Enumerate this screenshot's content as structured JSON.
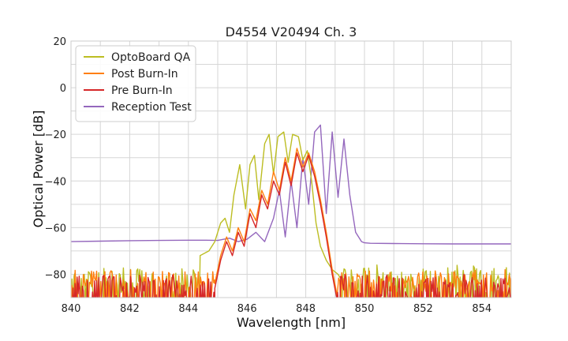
{
  "chart_data": {
    "type": "line",
    "title": "D4554 V20494 Ch. 3",
    "xlabel": "Wavelength [nm]",
    "ylabel": "Optical Power [dB]",
    "xlim": [
      840,
      855
    ],
    "ylim": [
      -90,
      20
    ],
    "xticks": [
      840,
      842,
      844,
      846,
      848,
      850,
      852,
      854
    ],
    "yticks": [
      -80,
      -60,
      -40,
      -20,
      0,
      20
    ],
    "xtick_labels": [
      "840",
      "842",
      "844",
      "846",
      "848",
      "850",
      "852",
      "854"
    ],
    "ytick_labels": [
      "−80",
      "−60",
      "−40",
      "−20",
      "0",
      "20"
    ],
    "grid": true,
    "legend_position": "top-left",
    "series": [
      {
        "name": "OptoBoard QA",
        "color": "#bcbd22",
        "noise_range": [
          840,
          844.4
        ],
        "noise_level": -77,
        "noise_floor": -88,
        "x": [
          844.4,
          844.7,
          844.9,
          845.1,
          845.25,
          845.4,
          845.55,
          845.75,
          845.95,
          846.1,
          846.25,
          846.4,
          846.6,
          846.75,
          846.9,
          847.05,
          847.25,
          847.4,
          847.55,
          847.75,
          847.9,
          848.05,
          848.2,
          848.35,
          848.5,
          848.7,
          848.9,
          849.1,
          849.2
        ],
        "y": [
          -72,
          -70,
          -66,
          -58,
          -56,
          -62,
          -46,
          -33,
          -52,
          -33,
          -29,
          -48,
          -24,
          -20,
          -37,
          -21,
          -19,
          -32,
          -20,
          -21,
          -31,
          -27,
          -40,
          -58,
          -68,
          -74,
          -78,
          -80,
          -82
        ],
        "noise_after_range": [
          849.2,
          855
        ],
        "noise_after_level": -76
      },
      {
        "name": "Post Burn-In",
        "color": "#ff7f0e",
        "noise_range": [
          840,
          844.9
        ],
        "noise_level": -78,
        "noise_floor": -88,
        "x": [
          844.9,
          845.1,
          845.3,
          845.5,
          845.7,
          845.9,
          846.1,
          846.3,
          846.5,
          846.7,
          846.9,
          847.1,
          847.3,
          847.5,
          847.7,
          847.9,
          848.1,
          848.3,
          848.5,
          848.7,
          848.9,
          849.05
        ],
        "y": [
          -84,
          -72,
          -64,
          -70,
          -60,
          -66,
          -52,
          -57,
          -44,
          -50,
          -36,
          -44,
          -30,
          -40,
          -26,
          -34,
          -28,
          -36,
          -48,
          -62,
          -78,
          -88
        ],
        "noise_after_range": [
          849.05,
          855
        ],
        "noise_after_level": -78
      },
      {
        "name": "Pre Burn-In",
        "color": "#d62728",
        "noise_range": [
          840,
          844.9
        ],
        "noise_level": -80,
        "noise_floor": -90,
        "x": [
          844.9,
          845.1,
          845.3,
          845.5,
          845.7,
          845.9,
          846.1,
          846.3,
          846.5,
          846.7,
          846.9,
          847.1,
          847.3,
          847.5,
          847.7,
          847.9,
          848.1,
          848.3,
          848.5,
          848.7,
          848.9,
          849.05
        ],
        "y": [
          -86,
          -74,
          -66,
          -72,
          -62,
          -68,
          -54,
          -60,
          -46,
          -52,
          -40,
          -46,
          -32,
          -42,
          -28,
          -36,
          -29,
          -38,
          -50,
          -64,
          -80,
          -90
        ],
        "noise_after_range": [
          849.05,
          855
        ],
        "noise_after_level": -80
      },
      {
        "name": "Reception Test",
        "color": "#9467bd",
        "x": [
          840,
          841,
          842,
          843,
          844,
          844.6,
          845.0,
          845.4,
          845.7,
          846.0,
          846.3,
          846.6,
          846.9,
          847.1,
          847.3,
          847.5,
          847.7,
          847.9,
          848.1,
          848.3,
          848.5,
          848.7,
          848.9,
          849.1,
          849.3,
          849.5,
          849.7,
          849.9,
          850.0,
          850.2,
          851,
          852,
          853,
          854,
          855
        ],
        "y": [
          -66,
          -65.8,
          -65.6,
          -65.5,
          -65.4,
          -65.4,
          -65.5,
          -64.5,
          -66,
          -65,
          -62,
          -66,
          -56,
          -44,
          -64,
          -40,
          -60,
          -30,
          -50,
          -19,
          -16,
          -54,
          -19,
          -47,
          -22,
          -46,
          -62,
          -66,
          -66.5,
          -66.7,
          -66.8,
          -66.9,
          -67,
          -67,
          -67
        ]
      }
    ]
  }
}
